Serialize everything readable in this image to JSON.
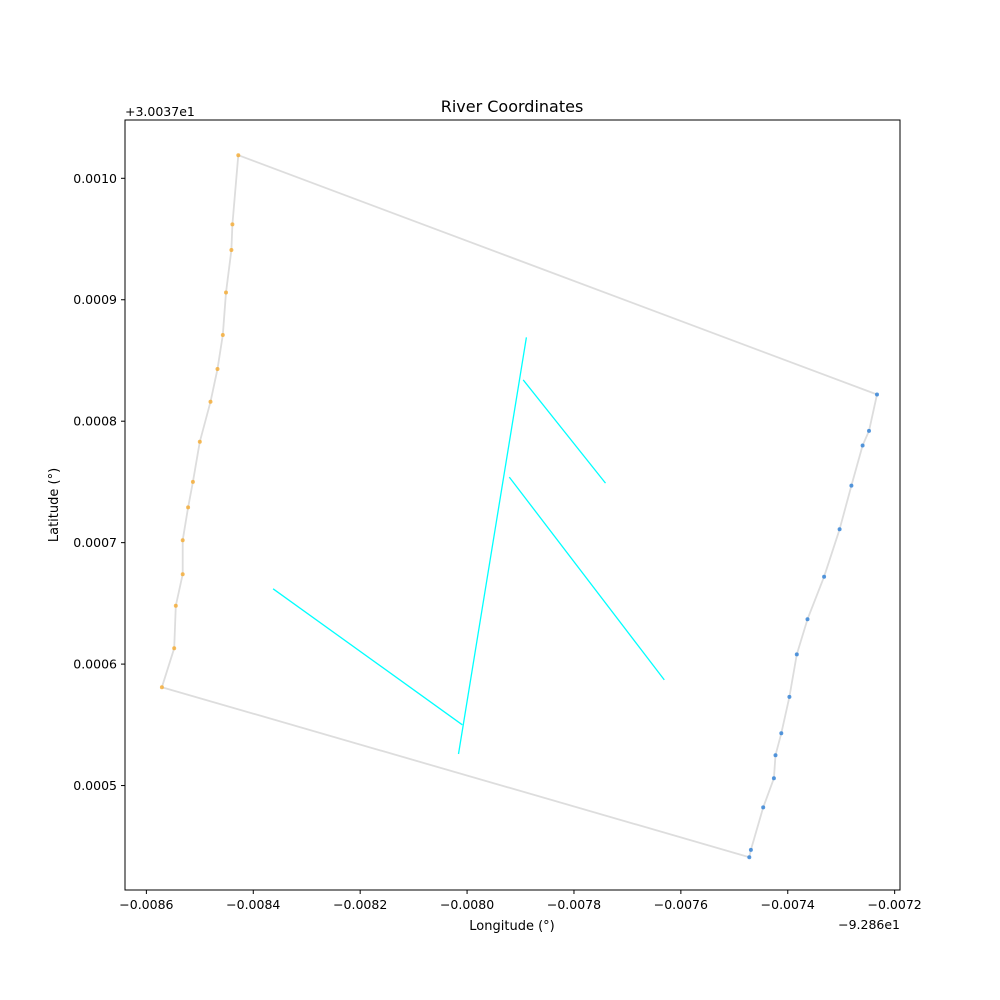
{
  "chart_data": {
    "type": "line",
    "title": "River Coordinates",
    "xlabel": "Longitude (°)",
    "ylabel": "Latitude (°)",
    "x_offset_label": "−9.286e1",
    "y_offset_label": "+3.0037e1",
    "x_offset": -92.86,
    "y_offset": 30.037,
    "xlim": [
      -0.00864,
      -0.00719
    ],
    "ylim": [
      0.000414,
      0.001048
    ],
    "x_ticks": [
      {
        "value": -0.0086,
        "label": "−0.0086"
      },
      {
        "value": -0.0084,
        "label": "−0.0084"
      },
      {
        "value": -0.0082,
        "label": "−0.0082"
      },
      {
        "value": -0.008,
        "label": "−0.0080"
      },
      {
        "value": -0.0078,
        "label": "−0.0078"
      },
      {
        "value": -0.0076,
        "label": "−0.0076"
      },
      {
        "value": -0.0074,
        "label": "−0.0074"
      },
      {
        "value": -0.0072,
        "label": "−0.0072"
      }
    ],
    "y_ticks": [
      {
        "value": 0.0005,
        "label": "0.0005"
      },
      {
        "value": 0.0006,
        "label": "0.0006"
      },
      {
        "value": 0.0007,
        "label": "0.0007"
      },
      {
        "value": 0.0008,
        "label": "0.0008"
      },
      {
        "value": 0.0009,
        "label": "0.0009"
      },
      {
        "value": 0.001,
        "label": "0.0010"
      }
    ],
    "grid": false,
    "series": [
      {
        "kind": "line",
        "color": "#dddddd",
        "points": [
          [
            -0.008571,
            0.000581
          ],
          [
            -0.008548,
            0.000613
          ],
          [
            -0.008545,
            0.000648
          ],
          [
            -0.008532,
            0.000674
          ],
          [
            -0.008532,
            0.000702
          ],
          [
            -0.008522,
            0.000729
          ],
          [
            -0.008513,
            0.00075
          ],
          [
            -0.0085,
            0.000783
          ],
          [
            -0.00848,
            0.000816
          ],
          [
            -0.008467,
            0.000843
          ],
          [
            -0.008457,
            0.000871
          ],
          [
            -0.008451,
            0.000906
          ],
          [
            -0.008441,
            0.000941
          ],
          [
            -0.008439,
            0.000962
          ],
          [
            -0.008428,
            0.001019
          ],
          [
            -0.007233,
            0.000822
          ],
          [
            -0.007248,
            0.000792
          ],
          [
            -0.00726,
            0.00078
          ],
          [
            -0.007281,
            0.000747
          ],
          [
            -0.007303,
            0.000711
          ],
          [
            -0.007332,
            0.000672
          ],
          [
            -0.007363,
            0.000637
          ],
          [
            -0.007383,
            0.000608
          ],
          [
            -0.007397,
            0.000573
          ],
          [
            -0.007412,
            0.000543
          ],
          [
            -0.007423,
            0.000525
          ],
          [
            -0.007426,
            0.000506
          ],
          [
            -0.007446,
            0.000482
          ],
          [
            -0.007469,
            0.000447
          ],
          [
            -0.007472,
            0.000441
          ],
          [
            -0.008571,
            0.000581
          ]
        ]
      },
      {
        "kind": "markers",
        "color": "#f5a623",
        "points": [
          [
            -0.008571,
            0.000581
          ],
          [
            -0.008548,
            0.000613
          ],
          [
            -0.008545,
            0.000648
          ],
          [
            -0.008532,
            0.000674
          ],
          [
            -0.008532,
            0.000702
          ],
          [
            -0.008522,
            0.000729
          ],
          [
            -0.008513,
            0.00075
          ],
          [
            -0.0085,
            0.000783
          ],
          [
            -0.00848,
            0.000816
          ],
          [
            -0.008467,
            0.000843
          ],
          [
            -0.008457,
            0.000871
          ],
          [
            -0.008451,
            0.000906
          ],
          [
            -0.008441,
            0.000941
          ],
          [
            -0.008439,
            0.000962
          ],
          [
            -0.008428,
            0.001019
          ]
        ]
      },
      {
        "kind": "markers",
        "color": "#1f77d4",
        "points": [
          [
            -0.007233,
            0.000822
          ],
          [
            -0.007248,
            0.000792
          ],
          [
            -0.00726,
            0.00078
          ],
          [
            -0.007281,
            0.000747
          ],
          [
            -0.007303,
            0.000711
          ],
          [
            -0.007332,
            0.000672
          ],
          [
            -0.007363,
            0.000637
          ],
          [
            -0.007383,
            0.000608
          ],
          [
            -0.007397,
            0.000573
          ],
          [
            -0.007412,
            0.000543
          ],
          [
            -0.007423,
            0.000525
          ],
          [
            -0.007426,
            0.000506
          ],
          [
            -0.007446,
            0.000482
          ],
          [
            -0.007469,
            0.000447
          ],
          [
            -0.007472,
            0.000441
          ]
        ]
      },
      {
        "kind": "line",
        "color": "#00ffff",
        "points": [
          [
            -0.008016,
            0.000526
          ],
          [
            -0.007889,
            0.000869
          ]
        ]
      },
      {
        "kind": "line",
        "color": "#00ffff",
        "points": [
          [
            -0.008363,
            0.000662
          ],
          [
            -0.008009,
            0.00055
          ]
        ]
      },
      {
        "kind": "line",
        "color": "#00ffff",
        "points": [
          [
            -0.007921,
            0.000754
          ],
          [
            -0.007631,
            0.000587
          ]
        ]
      },
      {
        "kind": "line",
        "color": "#00ffff",
        "points": [
          [
            -0.007895,
            0.000834
          ],
          [
            -0.007741,
            0.000749
          ]
        ]
      }
    ]
  }
}
